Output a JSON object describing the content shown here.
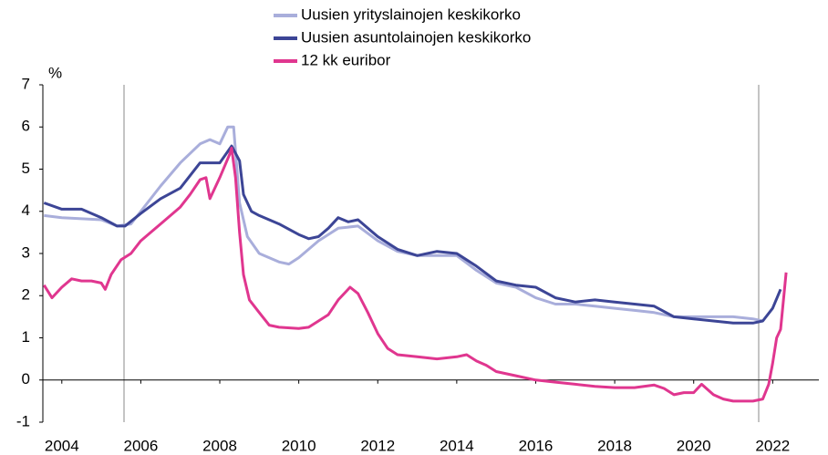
{
  "chart_data": {
    "type": "line",
    "y_unit": "%",
    "xlim": [
      2003.52,
      2023.17
    ],
    "xticks": [
      2004,
      2006,
      2008,
      2010,
      2012,
      2014,
      2016,
      2018,
      2020,
      2022
    ],
    "ylim": [
      -1,
      7
    ],
    "yticks": [
      -1,
      0,
      1,
      2,
      3,
      4,
      5,
      6,
      7
    ],
    "series": [
      {
        "name": "Uusien yrityslainojen keskikorko",
        "color": "#a9aedb",
        "x": [
          2003.55,
          2004.0,
          2005.0,
          2005.4,
          2005.75,
          2006.0,
          2006.5,
          2007.0,
          2007.5,
          2007.75,
          2008.0,
          2008.2,
          2008.35,
          2008.5,
          2008.7,
          2009.0,
          2009.5,
          2009.75,
          2010.0,
          2010.5,
          2011.0,
          2011.5,
          2012.0,
          2012.5,
          2013.0,
          2013.5,
          2014.0,
          2014.5,
          2015.0,
          2015.5,
          2016.0,
          2016.5,
          2017.0,
          2017.5,
          2018.0,
          2018.5,
          2019.0,
          2019.5,
          2020.0,
          2020.5,
          2021.0,
          2021.5,
          2021.75
        ],
        "values": [
          3.9,
          3.85,
          3.8,
          3.65,
          3.7,
          4.0,
          4.6,
          5.15,
          5.6,
          5.7,
          5.6,
          6.0,
          6.0,
          4.2,
          3.4,
          3.0,
          2.8,
          2.75,
          2.9,
          3.3,
          3.6,
          3.65,
          3.3,
          3.05,
          2.95,
          2.95,
          2.95,
          2.6,
          2.3,
          2.2,
          1.95,
          1.8,
          1.8,
          1.75,
          1.7,
          1.65,
          1.6,
          1.5,
          1.5,
          1.5,
          1.5,
          1.45,
          1.4
        ]
      },
      {
        "name": "Uusien asuntolainojen keskikorko",
        "color": "#3c4596",
        "x": [
          2003.55,
          2004.0,
          2004.5,
          2005.0,
          2005.4,
          2005.6,
          2006.0,
          2006.5,
          2007.0,
          2007.5,
          2008.0,
          2008.3,
          2008.5,
          2008.6,
          2008.8,
          2009.0,
          2009.5,
          2010.0,
          2010.25,
          2010.5,
          2010.75,
          2011.0,
          2011.25,
          2011.5,
          2011.75,
          2012.0,
          2012.5,
          2013.0,
          2013.5,
          2014.0,
          2014.5,
          2015.0,
          2015.5,
          2016.0,
          2016.5,
          2017.0,
          2017.5,
          2018.0,
          2018.5,
          2019.0,
          2019.5,
          2020.0,
          2020.5,
          2021.0,
          2021.5,
          2021.75,
          2022.0,
          2022.2
        ],
        "values": [
          4.2,
          4.05,
          4.05,
          3.85,
          3.65,
          3.65,
          3.95,
          4.3,
          4.55,
          5.15,
          5.15,
          5.55,
          5.2,
          4.4,
          4.0,
          3.9,
          3.7,
          3.45,
          3.35,
          3.4,
          3.6,
          3.85,
          3.75,
          3.8,
          3.6,
          3.4,
          3.1,
          2.95,
          3.05,
          3.0,
          2.7,
          2.35,
          2.25,
          2.2,
          1.95,
          1.85,
          1.9,
          1.85,
          1.8,
          1.75,
          1.5,
          1.45,
          1.4,
          1.35,
          1.35,
          1.4,
          1.7,
          2.15
        ]
      },
      {
        "name": "12 kk euribor",
        "color": "#e0368f",
        "x": [
          2003.55,
          2003.75,
          2004.0,
          2004.25,
          2004.5,
          2004.75,
          2005.0,
          2005.1,
          2005.25,
          2005.5,
          2005.75,
          2006.0,
          2006.25,
          2006.5,
          2006.75,
          2007.0,
          2007.25,
          2007.5,
          2007.65,
          2007.75,
          2008.0,
          2008.25,
          2008.3,
          2008.4,
          2008.5,
          2008.6,
          2008.75,
          2009.0,
          2009.25,
          2009.5,
          2010.0,
          2010.25,
          2010.5,
          2010.75,
          2011.0,
          2011.3,
          2011.5,
          2011.75,
          2012.0,
          2012.25,
          2012.5,
          2013.0,
          2013.5,
          2014.0,
          2014.25,
          2014.5,
          2014.75,
          2015.0,
          2015.5,
          2016.0,
          2016.5,
          2017.0,
          2017.5,
          2018.0,
          2018.5,
          2019.0,
          2019.25,
          2019.5,
          2019.75,
          2020.0,
          2020.2,
          2020.5,
          2020.75,
          2021.0,
          2021.5,
          2021.75,
          2021.9,
          2022.0,
          2022.1,
          2022.2,
          2022.34
        ],
        "values": [
          2.25,
          1.95,
          2.2,
          2.4,
          2.35,
          2.35,
          2.3,
          2.15,
          2.5,
          2.85,
          3.0,
          3.3,
          3.5,
          3.7,
          3.9,
          4.1,
          4.4,
          4.75,
          4.8,
          4.3,
          4.8,
          5.35,
          5.5,
          4.8,
          3.5,
          2.5,
          1.9,
          1.6,
          1.3,
          1.25,
          1.22,
          1.25,
          1.4,
          1.55,
          1.9,
          2.2,
          2.05,
          1.6,
          1.1,
          0.75,
          0.6,
          0.55,
          0.5,
          0.55,
          0.6,
          0.45,
          0.35,
          0.2,
          0.1,
          0.0,
          -0.05,
          -0.1,
          -0.15,
          -0.18,
          -0.18,
          -0.12,
          -0.2,
          -0.35,
          -0.3,
          -0.3,
          -0.1,
          -0.35,
          -0.45,
          -0.5,
          -0.5,
          -0.45,
          -0.1,
          0.4,
          1.0,
          1.2,
          2.55
        ]
      }
    ]
  }
}
